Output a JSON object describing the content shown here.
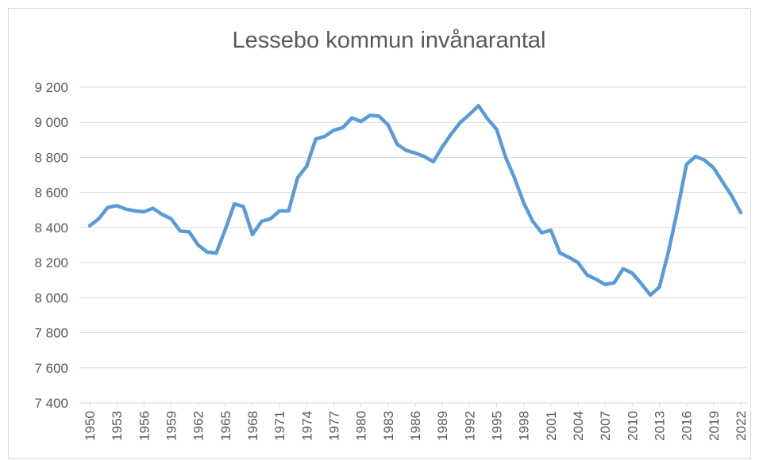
{
  "chart_data": {
    "type": "line",
    "title": "Lessebo kommun invånarantal",
    "x": [
      1950,
      1951,
      1952,
      1953,
      1954,
      1955,
      1956,
      1957,
      1958,
      1959,
      1960,
      1961,
      1962,
      1963,
      1964,
      1965,
      1966,
      1967,
      1968,
      1969,
      1970,
      1971,
      1972,
      1973,
      1974,
      1975,
      1976,
      1977,
      1978,
      1979,
      1980,
      1981,
      1982,
      1983,
      1984,
      1985,
      1986,
      1987,
      1988,
      1989,
      1990,
      1991,
      1992,
      1993,
      1994,
      1995,
      1996,
      1997,
      1998,
      1999,
      2000,
      2001,
      2002,
      2003,
      2004,
      2005,
      2006,
      2007,
      2008,
      2009,
      2010,
      2011,
      2012,
      2013,
      2014,
      2015,
      2016,
      2017,
      2018,
      2019,
      2020,
      2021,
      2022
    ],
    "series": [
      {
        "color": "#5b9bd5",
        "values": [
          8410,
          8450,
          8515,
          8525,
          8505,
          8495,
          8490,
          8510,
          8475,
          8450,
          8380,
          8375,
          8300,
          8260,
          8255,
          8390,
          8535,
          8520,
          8360,
          8435,
          8450,
          8495,
          8495,
          8685,
          8750,
          8905,
          8920,
          8955,
          8970,
          9025,
          9005,
          9040,
          9035,
          8985,
          8875,
          8840,
          8825,
          8805,
          8775,
          8860,
          8935,
          9000,
          9045,
          9095,
          9020,
          8960,
          8800,
          8680,
          8540,
          8435,
          8370,
          8385,
          8255,
          8230,
          8200,
          8130,
          8105,
          8075,
          8085,
          8165,
          8140,
          8080,
          8015,
          8060,
          8260,
          8500,
          8760,
          8805,
          8785,
          8740,
          8660,
          8580,
          8485
        ]
      }
    ],
    "xlim": [
      1950,
      2022
    ],
    "xticks": [
      1950,
      1953,
      1956,
      1959,
      1962,
      1965,
      1968,
      1971,
      1974,
      1977,
      1980,
      1983,
      1986,
      1989,
      1992,
      1995,
      1998,
      2001,
      2004,
      2007,
      2010,
      2013,
      2016,
      2019,
      2022
    ],
    "ylim": [
      7400,
      9200
    ],
    "yticks": [
      {
        "value": 7400,
        "label": "7 400"
      },
      {
        "value": 7600,
        "label": "7 600"
      },
      {
        "value": 7800,
        "label": "7 800"
      },
      {
        "value": 8000,
        "label": "8 000"
      },
      {
        "value": 8200,
        "label": "8 200"
      },
      {
        "value": 8400,
        "label": "8 400"
      },
      {
        "value": 8600,
        "label": "8 600"
      },
      {
        "value": 8800,
        "label": "8 800"
      },
      {
        "value": 9000,
        "label": "9 000"
      },
      {
        "value": 9200,
        "label": "9 200"
      }
    ],
    "grid": true
  }
}
